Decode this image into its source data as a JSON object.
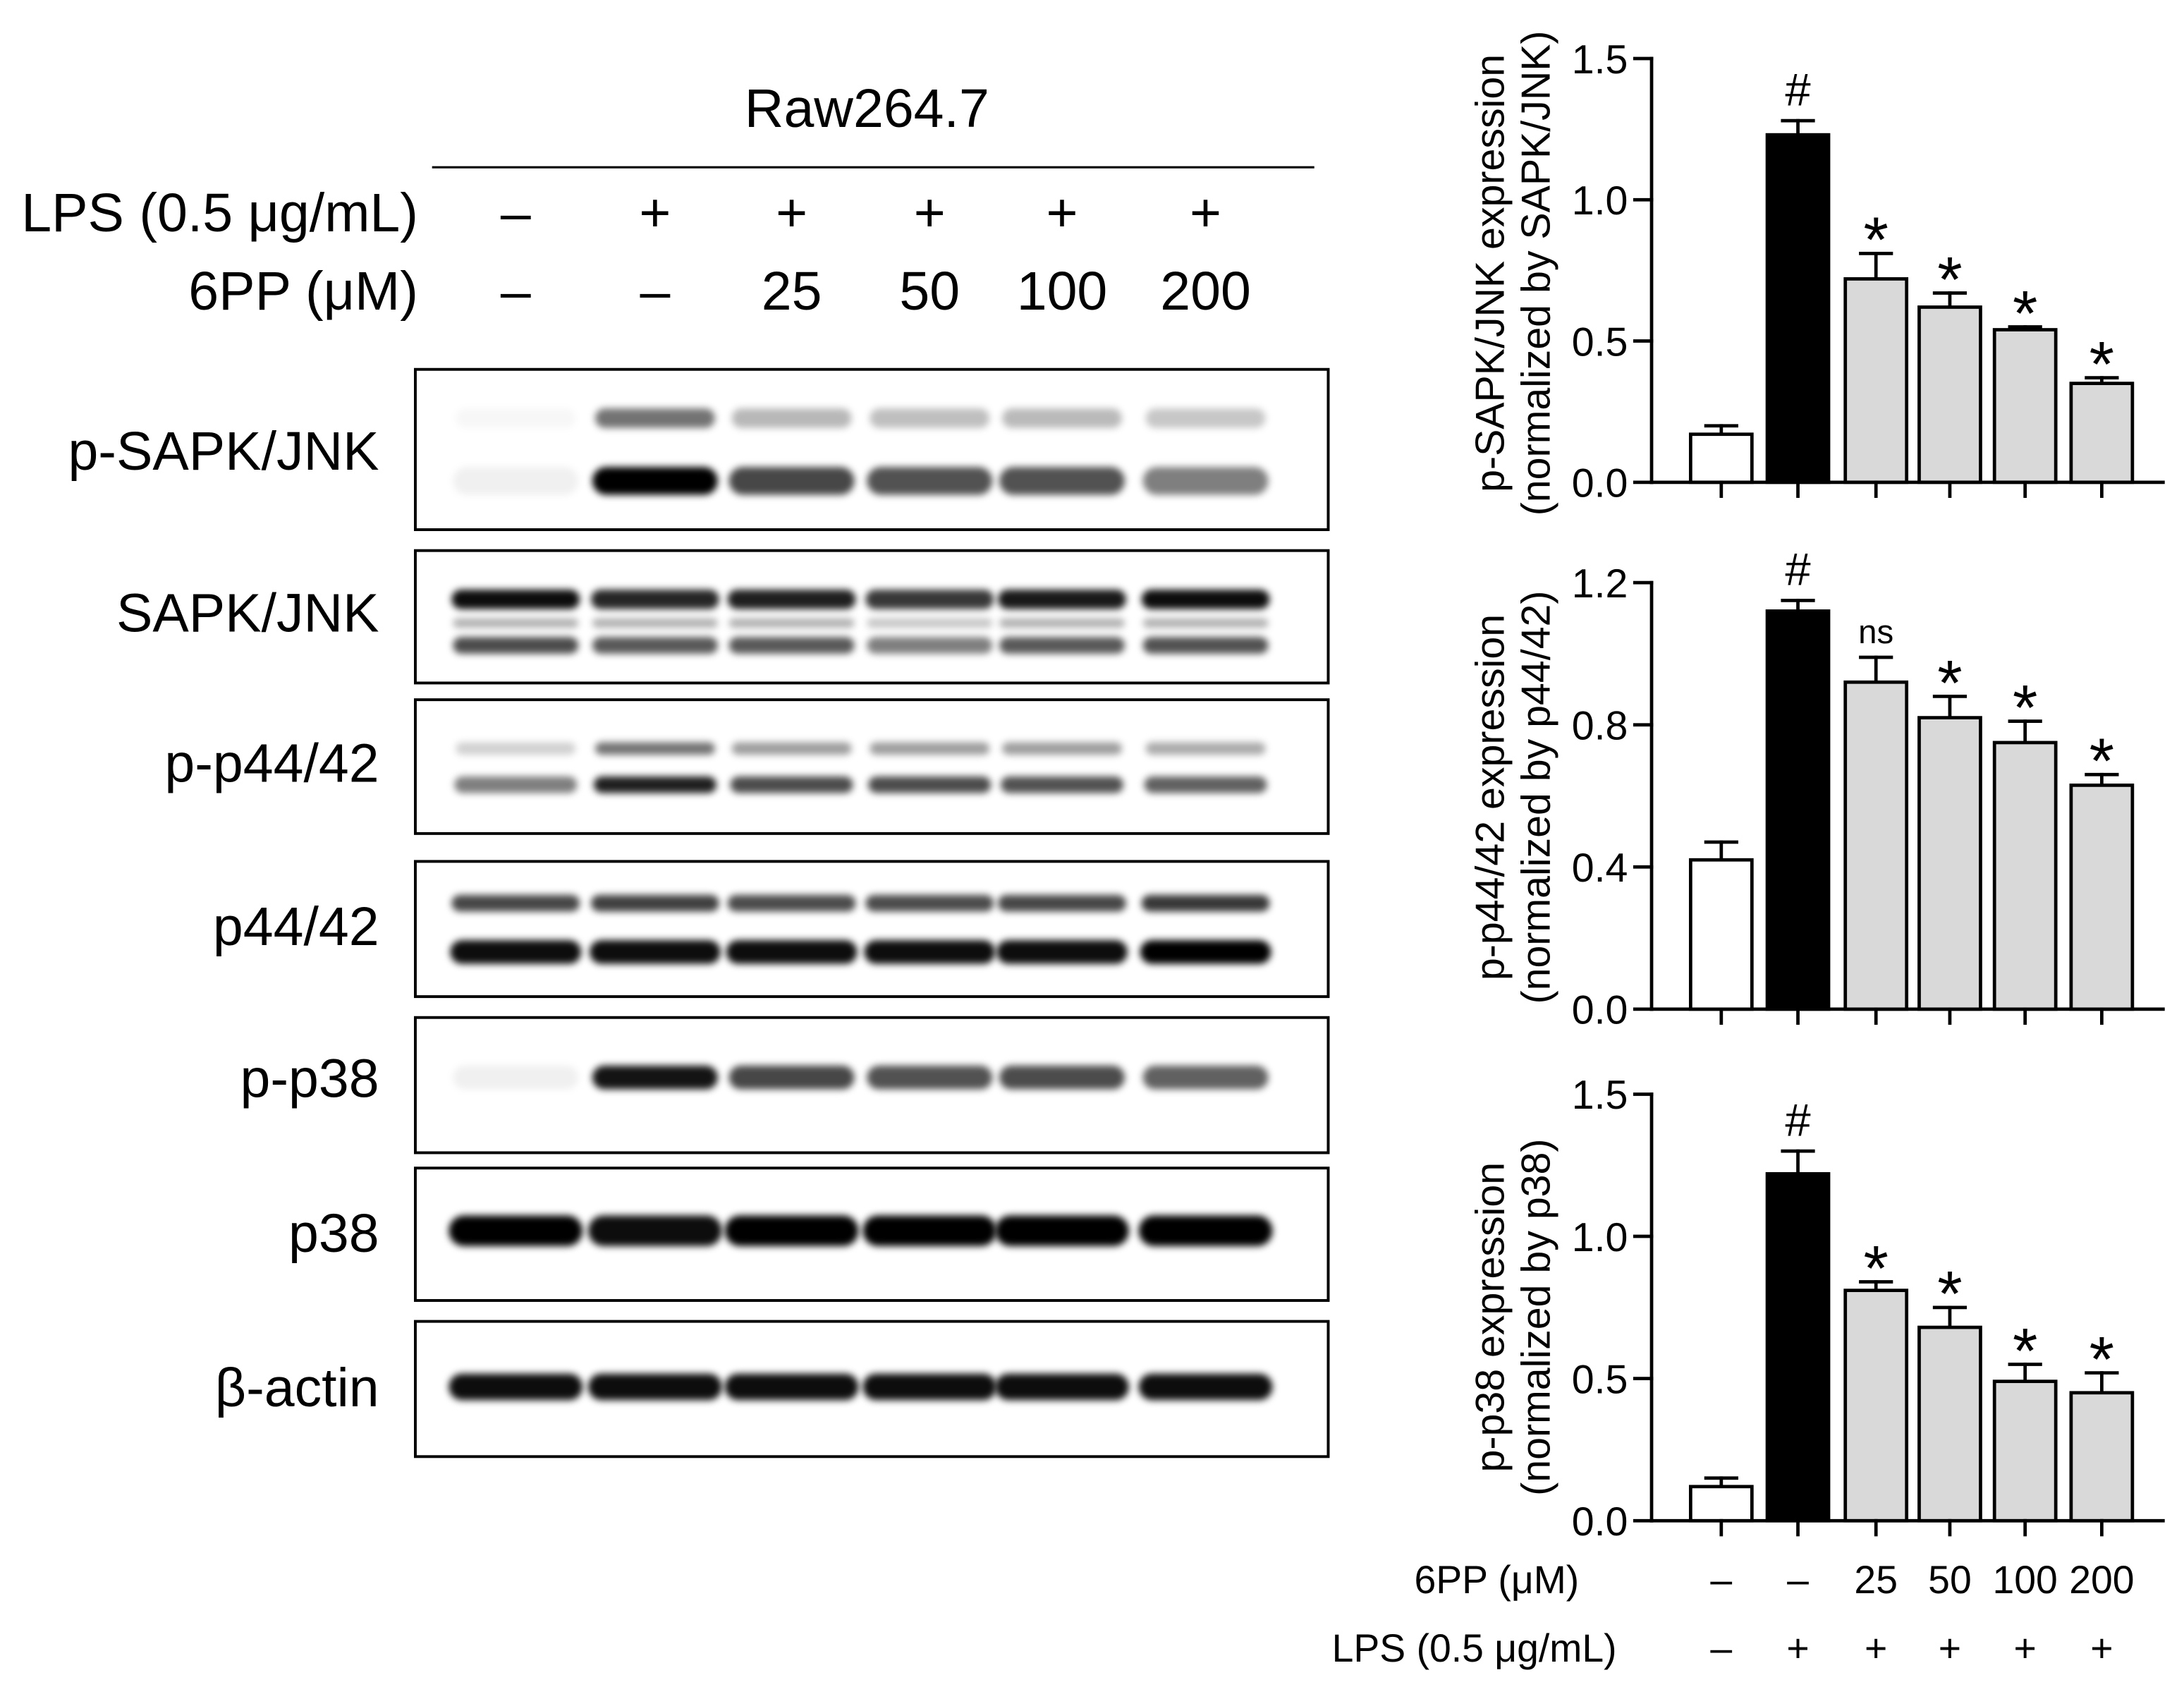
{
  "blot_panel": {
    "cell_line": "Raw264.7",
    "lps": {
      "label": "LPS (0.5 μg/mL)",
      "lanes": [
        "–",
        "+",
        "+",
        "+",
        "+",
        "+"
      ]
    },
    "compound": {
      "label": "6PP (μM)",
      "lanes": [
        "–",
        "–",
        "25",
        "50",
        "100",
        "200"
      ]
    },
    "band_color": "#000000",
    "blots": [
      {
        "label": "p-SAPK/JNK",
        "band_intensity": [
          [
            0.03,
            0.55,
            0.28,
            0.25,
            0.27,
            0.22
          ],
          [
            0.06,
            1.0,
            0.72,
            0.68,
            0.68,
            0.5
          ]
        ]
      },
      {
        "label": "SAPK/JNK",
        "band_intensity": [
          [
            0.95,
            0.85,
            0.88,
            0.78,
            0.9,
            0.95
          ],
          [
            0.3,
            0.3,
            0.3,
            0.22,
            0.3,
            0.3
          ],
          [
            0.7,
            0.65,
            0.65,
            0.5,
            0.65,
            0.68
          ]
        ]
      },
      {
        "label": "p-p44/42",
        "band_intensity": [
          [
            0.18,
            0.55,
            0.38,
            0.38,
            0.38,
            0.33
          ],
          [
            0.5,
            0.88,
            0.7,
            0.7,
            0.68,
            0.62
          ]
        ]
      },
      {
        "label": "p44/42",
        "band_intensity": [
          [
            0.72,
            0.75,
            0.7,
            0.7,
            0.72,
            0.78
          ],
          [
            0.95,
            0.95,
            0.95,
            0.95,
            0.95,
            1.0
          ]
        ]
      },
      {
        "label": "p-p38",
        "band_intensity": [
          [
            0.06,
            0.92,
            0.72,
            0.68,
            0.7,
            0.62
          ]
        ]
      },
      {
        "label": "p38",
        "band_intensity": [
          [
            1.0,
            0.95,
            1.0,
            1.0,
            1.0,
            1.0
          ]
        ]
      },
      {
        "label": "β-actin",
        "band_intensity": [
          [
            0.95,
            0.95,
            0.95,
            0.95,
            0.95,
            0.95
          ]
        ]
      }
    ]
  },
  "chart_data": [
    {
      "type": "bar",
      "ylabel": [
        "p-SAPK/JNK expression",
        "(normalized by SAPK/JNK)"
      ],
      "ylim": [
        0,
        1.5
      ],
      "yticks": [
        0,
        0.5,
        1.0,
        1.5
      ],
      "ytick_labels": [
        "0.0",
        "0.5",
        "1.0",
        "1.5"
      ],
      "values": [
        0.17,
        1.23,
        0.72,
        0.62,
        0.54,
        0.35
      ],
      "errors": [
        0.03,
        0.05,
        0.09,
        0.05,
        0.01,
        0.02
      ],
      "significance": [
        "",
        "#",
        "*",
        "*",
        "*",
        "*"
      ],
      "bar_colors": [
        "#ffffff",
        "#000000",
        "#d9d9d9",
        "#d9d9d9",
        "#d9d9d9",
        "#d9d9d9"
      ],
      "bar_edge_color": "#000000"
    },
    {
      "type": "bar",
      "ylabel": [
        "p-p44/42 expression",
        "(normalized by p44/42)"
      ],
      "ylim": [
        0,
        1.2
      ],
      "yticks": [
        0,
        0.4,
        0.8,
        1.2
      ],
      "ytick_labels": [
        "0.0",
        "0.4",
        "0.8",
        "1.2"
      ],
      "values": [
        0.42,
        1.12,
        0.92,
        0.82,
        0.75,
        0.63
      ],
      "errors": [
        0.05,
        0.03,
        0.07,
        0.06,
        0.06,
        0.03
      ],
      "significance": [
        "",
        "#",
        "ns",
        "*",
        "*",
        "*"
      ],
      "bar_colors": [
        "#ffffff",
        "#000000",
        "#d9d9d9",
        "#d9d9d9",
        "#d9d9d9",
        "#d9d9d9"
      ],
      "bar_edge_color": "#000000"
    },
    {
      "type": "bar",
      "ylabel": [
        "p-p38 expression",
        "(normalized by p38)"
      ],
      "ylim": [
        0,
        1.5
      ],
      "yticks": [
        0,
        0.5,
        1.0,
        1.5
      ],
      "ytick_labels": [
        "0.0",
        "0.5",
        "1.0",
        "1.5"
      ],
      "values": [
        0.12,
        1.22,
        0.81,
        0.68,
        0.49,
        0.45
      ],
      "errors": [
        0.03,
        0.08,
        0.03,
        0.07,
        0.06,
        0.07
      ],
      "significance": [
        "",
        "#",
        "*",
        "*",
        "*",
        "*"
      ],
      "bar_colors": [
        "#ffffff",
        "#000000",
        "#d9d9d9",
        "#d9d9d9",
        "#d9d9d9",
        "#d9d9d9"
      ],
      "bar_edge_color": "#000000"
    }
  ],
  "chart_x_axis": {
    "rows": [
      {
        "label": "6PP (μM)",
        "values": [
          "–",
          "–",
          "25",
          "50",
          "100",
          "200"
        ]
      },
      {
        "label": "LPS (0.5 μg/mL)",
        "values": [
          "–",
          "+",
          "+",
          "+",
          "+",
          "+"
        ]
      }
    ]
  }
}
